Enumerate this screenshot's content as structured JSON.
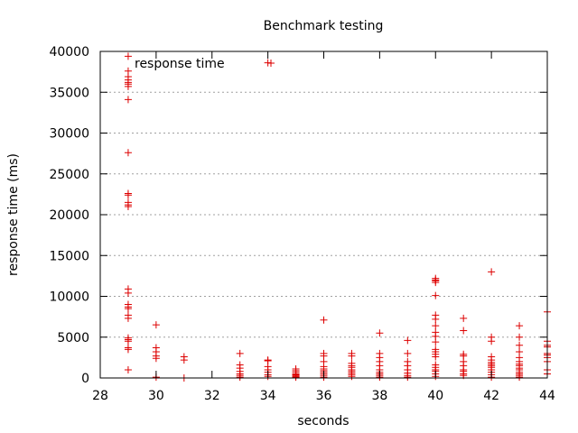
{
  "chart_data": {
    "type": "scatter",
    "title": "Benchmark testing",
    "xlabel": "seconds",
    "ylabel": "response time (ms)",
    "xlim": [
      28,
      44
    ],
    "ylim": [
      0,
      40000
    ],
    "x_ticks": [
      28,
      30,
      32,
      34,
      36,
      38,
      40,
      42,
      44
    ],
    "y_ticks": [
      0,
      5000,
      10000,
      15000,
      20000,
      25000,
      30000,
      35000,
      40000
    ],
    "grid": "horizontal dotted",
    "legend": "top-left",
    "marker": "plus",
    "series": [
      {
        "name": "response time",
        "color": "#dd0000",
        "points": [
          [
            29,
            39400
          ],
          [
            29,
            37600
          ],
          [
            29,
            36900
          ],
          [
            29,
            36500
          ],
          [
            29,
            36200
          ],
          [
            29,
            36000
          ],
          [
            29,
            35700
          ],
          [
            29,
            34100
          ],
          [
            29,
            27600
          ],
          [
            29,
            22600
          ],
          [
            29,
            22400
          ],
          [
            29,
            21500
          ],
          [
            29,
            21200
          ],
          [
            29,
            21000
          ],
          [
            29,
            10900
          ],
          [
            29,
            10400
          ],
          [
            29,
            9000
          ],
          [
            29,
            8700
          ],
          [
            29,
            8500
          ],
          [
            29,
            7700
          ],
          [
            29,
            7300
          ],
          [
            29,
            4900
          ],
          [
            29,
            4700
          ],
          [
            29,
            4500
          ],
          [
            29,
            3700
          ],
          [
            29,
            3500
          ],
          [
            29,
            1000
          ],
          [
            30,
            6500
          ],
          [
            30,
            3700
          ],
          [
            30,
            3200
          ],
          [
            30,
            2700
          ],
          [
            30,
            2400
          ],
          [
            30,
            100
          ],
          [
            31,
            2600
          ],
          [
            31,
            2200
          ],
          [
            31,
            0
          ],
          [
            33,
            3000
          ],
          [
            33,
            1600
          ],
          [
            33,
            1200
          ],
          [
            33,
            800
          ],
          [
            33,
            500
          ],
          [
            33,
            300
          ],
          [
            33,
            100
          ],
          [
            34,
            38600
          ],
          [
            34,
            2200
          ],
          [
            34,
            2100
          ],
          [
            34,
            1400
          ],
          [
            34,
            1000
          ],
          [
            34,
            700
          ],
          [
            34,
            400
          ],
          [
            34,
            200
          ],
          [
            35,
            1100
          ],
          [
            35,
            900
          ],
          [
            35,
            700
          ],
          [
            35,
            500
          ],
          [
            35,
            400
          ],
          [
            35,
            300
          ],
          [
            35,
            200
          ],
          [
            35,
            100
          ],
          [
            36,
            7100
          ],
          [
            36,
            3000
          ],
          [
            36,
            2700
          ],
          [
            36,
            2000
          ],
          [
            36,
            1400
          ],
          [
            36,
            1100
          ],
          [
            36,
            900
          ],
          [
            36,
            700
          ],
          [
            36,
            500
          ],
          [
            36,
            300
          ],
          [
            36,
            100
          ],
          [
            37,
            3000
          ],
          [
            37,
            2700
          ],
          [
            37,
            1800
          ],
          [
            37,
            1500
          ],
          [
            37,
            1300
          ],
          [
            37,
            1000
          ],
          [
            37,
            800
          ],
          [
            37,
            600
          ],
          [
            37,
            400
          ],
          [
            37,
            200
          ],
          [
            38,
            5500
          ],
          [
            38,
            3000
          ],
          [
            38,
            2500
          ],
          [
            38,
            2000
          ],
          [
            38,
            1500
          ],
          [
            38,
            1000
          ],
          [
            38,
            700
          ],
          [
            38,
            500
          ],
          [
            38,
            300
          ],
          [
            38,
            100
          ],
          [
            39,
            4600
          ],
          [
            39,
            3000
          ],
          [
            39,
            2000
          ],
          [
            39,
            1500
          ],
          [
            39,
            1000
          ],
          [
            39,
            600
          ],
          [
            39,
            300
          ],
          [
            39,
            100
          ],
          [
            40,
            12200
          ],
          [
            40,
            12000
          ],
          [
            40,
            11900
          ],
          [
            40,
            11700
          ],
          [
            40,
            10100
          ],
          [
            40,
            7700
          ],
          [
            40,
            7200
          ],
          [
            40,
            6400
          ],
          [
            40,
            5600
          ],
          [
            40,
            5100
          ],
          [
            40,
            4400
          ],
          [
            40,
            3500
          ],
          [
            40,
            3200
          ],
          [
            40,
            2900
          ],
          [
            40,
            2600
          ],
          [
            40,
            1600
          ],
          [
            40,
            1300
          ],
          [
            40,
            1000
          ],
          [
            40,
            800
          ],
          [
            40,
            500
          ],
          [
            40,
            200
          ],
          [
            41,
            7300
          ],
          [
            41,
            5800
          ],
          [
            41,
            2900
          ],
          [
            41,
            2700
          ],
          [
            41,
            2000
          ],
          [
            41,
            1500
          ],
          [
            41,
            1000
          ],
          [
            41,
            800
          ],
          [
            41,
            500
          ],
          [
            41,
            300
          ],
          [
            42,
            13000
          ],
          [
            42,
            5000
          ],
          [
            42,
            4500
          ],
          [
            42,
            2600
          ],
          [
            42,
            2200
          ],
          [
            42,
            1900
          ],
          [
            42,
            1700
          ],
          [
            42,
            1500
          ],
          [
            42,
            1300
          ],
          [
            42,
            1000
          ],
          [
            42,
            700
          ],
          [
            42,
            400
          ],
          [
            42,
            100
          ],
          [
            43,
            6400
          ],
          [
            43,
            5000
          ],
          [
            43,
            4000
          ],
          [
            43,
            3200
          ],
          [
            43,
            2500
          ],
          [
            43,
            2000
          ],
          [
            43,
            1700
          ],
          [
            43,
            1500
          ],
          [
            43,
            1200
          ],
          [
            43,
            1000
          ],
          [
            43,
            700
          ],
          [
            43,
            500
          ],
          [
            43,
            300
          ],
          [
            43,
            100
          ],
          [
            44,
            8100
          ],
          [
            44,
            4500
          ],
          [
            44,
            4000
          ],
          [
            44,
            3800
          ],
          [
            44,
            3000
          ],
          [
            44,
            2800
          ],
          [
            44,
            2500
          ],
          [
            44,
            2000
          ],
          [
            44,
            1000
          ],
          [
            44,
            500
          ]
        ]
      }
    ]
  }
}
